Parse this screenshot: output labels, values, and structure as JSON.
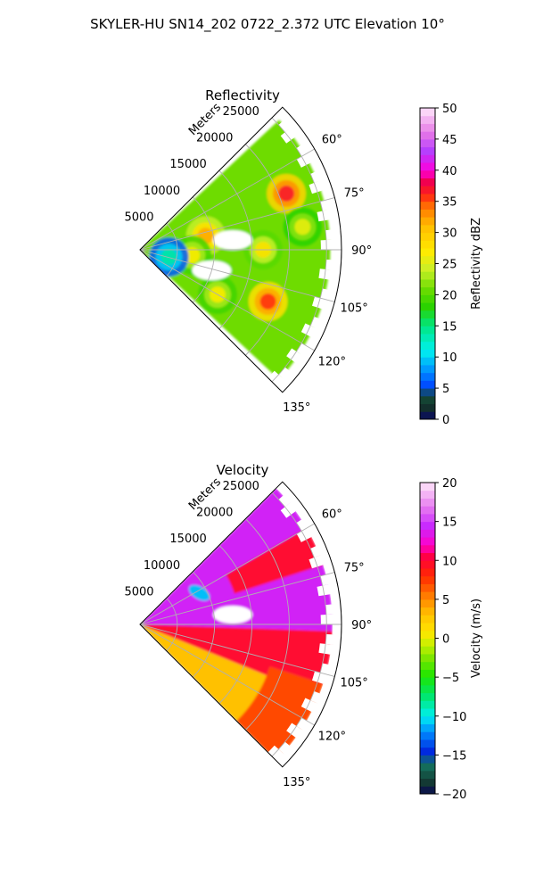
{
  "figure": {
    "suptitle": "SKYLER-HU  SN14_202  0722_2.372 UTC Elevation 10°"
  },
  "chart_data": [
    {
      "type": "heatmap",
      "projection": "polar-sector",
      "title": "Reflectivity",
      "radial_label": "Meters",
      "r_ticks": [
        5000,
        10000,
        15000,
        20000,
        25000
      ],
      "r_tick_labels": [
        "5000",
        "10000",
        "15000",
        "20000",
        "25000"
      ],
      "r_lim": [
        0,
        27000
      ],
      "theta_ticks": [
        60,
        75,
        90,
        105,
        120,
        135
      ],
      "theta_tick_labels": [
        "60°",
        "75°",
        "90°",
        "105°",
        "120°",
        "135°"
      ],
      "theta_range_deg": [
        45,
        135
      ],
      "grid": true,
      "colorbar": {
        "label": "Reflectivity dBZ",
        "vmin": 0,
        "vmax": 50,
        "ticks": [
          0,
          5,
          10,
          15,
          20,
          25,
          30,
          35,
          40,
          45,
          50
        ],
        "tick_labels": [
          "0",
          "5",
          "10",
          "15",
          "20",
          "25",
          "30",
          "35",
          "40",
          "45",
          "50"
        ]
      },
      "background_value": 21,
      "cells": [
        {
          "r": 21000,
          "theta": 69,
          "value": 37,
          "label": "cell-ne-core"
        },
        {
          "r": 18500,
          "theta": 112,
          "value": 36,
          "label": "cell-se-core"
        },
        {
          "r": 9000,
          "theta": 78,
          "value": 32,
          "label": "cell-n-small"
        },
        {
          "r": 16500,
          "theta": 90,
          "value": 28,
          "label": "band-center"
        },
        {
          "r": 22000,
          "theta": 82,
          "value": 26,
          "label": "band-east"
        },
        {
          "r": 7000,
          "theta": 96,
          "value": 27,
          "label": "near-center"
        },
        {
          "r": 12000,
          "theta": 120,
          "value": 27,
          "label": "sw-band"
        },
        {
          "r": 4000,
          "theta": 104,
          "value": 14,
          "label": "near-cyan"
        }
      ],
      "gaps": [
        {
          "r": 12500,
          "theta": 84,
          "label": "echo-free-hole"
        },
        {
          "r": 10000,
          "theta": 106,
          "label": "small-gap"
        }
      ]
    },
    {
      "type": "heatmap",
      "projection": "polar-sector",
      "title": "Velocity",
      "radial_label": "Meters",
      "r_ticks": [
        5000,
        10000,
        15000,
        20000,
        25000
      ],
      "r_tick_labels": [
        "5000",
        "10000",
        "15000",
        "20000",
        "25000"
      ],
      "r_lim": [
        0,
        27000
      ],
      "theta_ticks": [
        60,
        75,
        90,
        105,
        120,
        135
      ],
      "theta_tick_labels": [
        "60°",
        "75°",
        "90°",
        "105°",
        "120°",
        "135°"
      ],
      "theta_range_deg": [
        45,
        135
      ],
      "grid": true,
      "colorbar": {
        "label": "Velocity (m/s)",
        "vmin": -20,
        "vmax": 20,
        "ticks": [
          -20,
          -15,
          -10,
          -5,
          0,
          5,
          10,
          15,
          20
        ],
        "tick_labels": [
          "−20",
          "−15",
          "−10",
          "−5",
          "0",
          "5",
          "10",
          "15",
          "20"
        ]
      },
      "regions": [
        {
          "theta_range": [
            45,
            92
          ],
          "r_range": [
            0,
            27000
          ],
          "value": 14,
          "label": "outbound-north"
        },
        {
          "theta_range": [
            60,
            72
          ],
          "r_range": [
            13000,
            27000
          ],
          "value": 10,
          "label": "outbound-red-north"
        },
        {
          "theta_range": [
            92,
            112
          ],
          "r_range": [
            0,
            27000
          ],
          "value": 10,
          "label": "red-middle"
        },
        {
          "theta_range": [
            112,
            135
          ],
          "r_range": [
            0,
            27000
          ],
          "value": 3,
          "label": "yellow-south"
        },
        {
          "theta_range": [
            108,
            135
          ],
          "r_range": [
            18000,
            27000
          ],
          "value": 7,
          "label": "orange-south-far"
        }
      ],
      "features": [
        {
          "r": 9000,
          "theta": 62,
          "value": -11,
          "label": "inbound-cyan-patch"
        },
        {
          "r": 12500,
          "theta": 84,
          "label": "echo-free-hole"
        }
      ]
    }
  ]
}
